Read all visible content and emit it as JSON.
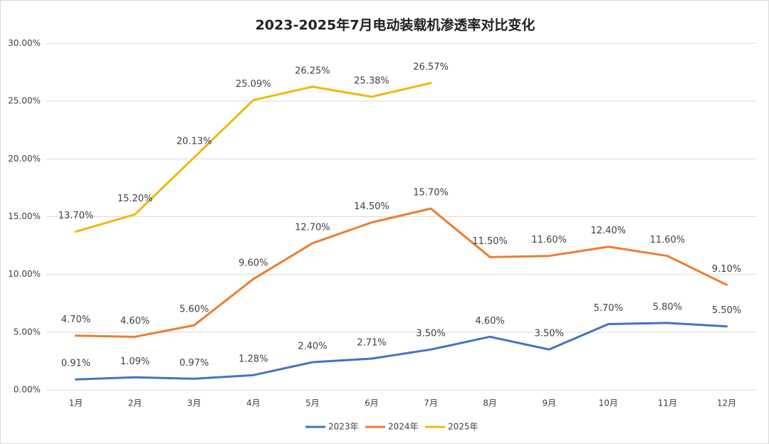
{
  "chart_data": {
    "type": "line",
    "title": "2023-2025年7月电动装载机渗透率对比变化",
    "categories": [
      "1月",
      "2月",
      "3月",
      "4月",
      "5月",
      "6月",
      "7月",
      "8月",
      "9月",
      "10月",
      "11月",
      "12月"
    ],
    "series": [
      {
        "name": "2023年",
        "color": "#4472c4",
        "values": [
          0.91,
          1.09,
          0.97,
          1.28,
          2.4,
          2.71,
          3.5,
          4.6,
          3.5,
          5.7,
          5.8,
          5.5
        ],
        "value_labels": [
          "0.91%",
          "1.09%",
          "0.97%",
          "1.28%",
          "2.40%",
          "2.71%",
          "3.50%",
          "4.60%",
          "3.50%",
          "5.70%",
          "5.80%",
          "5.50%"
        ]
      },
      {
        "name": "2024年",
        "color": "#ed7d31",
        "values": [
          4.7,
          4.6,
          5.6,
          9.6,
          12.7,
          14.5,
          15.7,
          11.5,
          11.6,
          12.4,
          11.6,
          9.1
        ],
        "value_labels": [
          "4.70%",
          "4.60%",
          "5.60%",
          "9.60%",
          "12.70%",
          "14.50%",
          "15.70%",
          "11.50%",
          "11.60%",
          "12.40%",
          "11.60%",
          "9.10%"
        ]
      },
      {
        "name": "2025年",
        "color": "#efb810",
        "values": [
          13.7,
          15.2,
          20.13,
          25.09,
          26.25,
          25.38,
          26.57,
          null,
          null,
          null,
          null,
          null
        ],
        "value_labels": [
          "13.70%",
          "15.20%",
          "20.13%",
          "25.09%",
          "26.25%",
          "25.38%",
          "26.57%",
          null,
          null,
          null,
          null,
          null
        ]
      }
    ],
    "ylim": [
      0,
      30
    ],
    "yticks": [
      {
        "value": 0,
        "label": "0.00%"
      },
      {
        "value": 5,
        "label": "5.00%"
      },
      {
        "value": 10,
        "label": "10.00%"
      },
      {
        "value": 15,
        "label": "15.00%"
      },
      {
        "value": 20,
        "label": "20.00%"
      },
      {
        "value": 25,
        "label": "25.00%"
      },
      {
        "value": 30,
        "label": "30.00%"
      }
    ],
    "grid": true,
    "legend": "bottom"
  }
}
